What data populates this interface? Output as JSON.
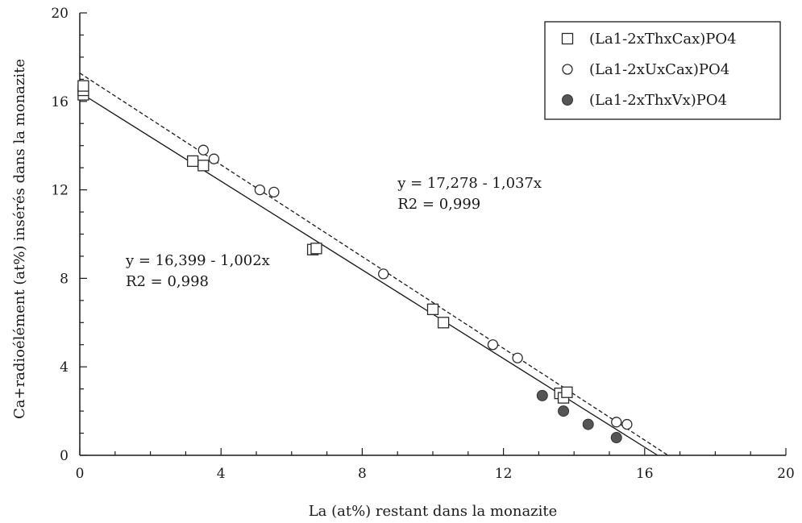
{
  "chart_data": {
    "type": "scatter",
    "xlabel": "La (at%) restant dans la monazite",
    "ylabel": "Ca+radioélément (at%) insérés dans la monazite",
    "xlim": [
      0,
      20
    ],
    "ylim": [
      0,
      20
    ],
    "xticks": [
      "0",
      "4",
      "8",
      "12",
      "16",
      "20"
    ],
    "yticks": [
      "0",
      "4",
      "8",
      "12",
      "16",
      "20"
    ],
    "grid": false,
    "legend_position": "top-right",
    "series": [
      {
        "name": "(La1-2xThxCax)PO4",
        "marker": "square",
        "points": [
          [
            0.1,
            16.3
          ],
          [
            0.1,
            16.5
          ],
          [
            0.1,
            16.7
          ],
          [
            3.2,
            13.3
          ],
          [
            3.5,
            13.1
          ],
          [
            6.6,
            9.3
          ],
          [
            6.7,
            9.35
          ],
          [
            10.0,
            6.6
          ],
          [
            10.3,
            6.0
          ],
          [
            13.6,
            2.8
          ],
          [
            13.7,
            2.6
          ],
          [
            13.8,
            2.85
          ]
        ]
      },
      {
        "name": "(La1-2xUxCax)PO4",
        "marker": "circle-open",
        "points": [
          [
            3.5,
            13.8
          ],
          [
            3.8,
            13.4
          ],
          [
            5.1,
            12.0
          ],
          [
            5.5,
            11.9
          ],
          [
            8.6,
            8.2
          ],
          [
            11.7,
            5.0
          ],
          [
            12.4,
            4.4
          ],
          [
            15.2,
            1.5
          ],
          [
            15.5,
            1.4
          ]
        ]
      },
      {
        "name": "(La1-2xThxVx)PO4",
        "marker": "circle-filled",
        "points": [
          [
            13.1,
            2.7
          ],
          [
            13.7,
            2.0
          ],
          [
            14.4,
            1.4
          ],
          [
            15.2,
            0.8
          ]
        ]
      }
    ],
    "fit_lines": [
      {
        "style": "dashed",
        "intercept": 17.278,
        "slope": -1.037
      },
      {
        "style": "solid",
        "intercept": 16.399,
        "slope": -1.002
      }
    ],
    "annotations": [
      {
        "line1": "y = 17,278 - 1,037x",
        "line2": "R2 = 0,999",
        "at": [
          9.0,
          12.1
        ]
      },
      {
        "line1": "y = 16,399 - 1,002x",
        "line2": "R2 = 0,998",
        "at": [
          1.3,
          8.6
        ]
      }
    ],
    "colors": {
      "axis": "#1a1a1a",
      "marker_stroke": "#2a2a2a",
      "filled_marker": "#555555"
    }
  }
}
